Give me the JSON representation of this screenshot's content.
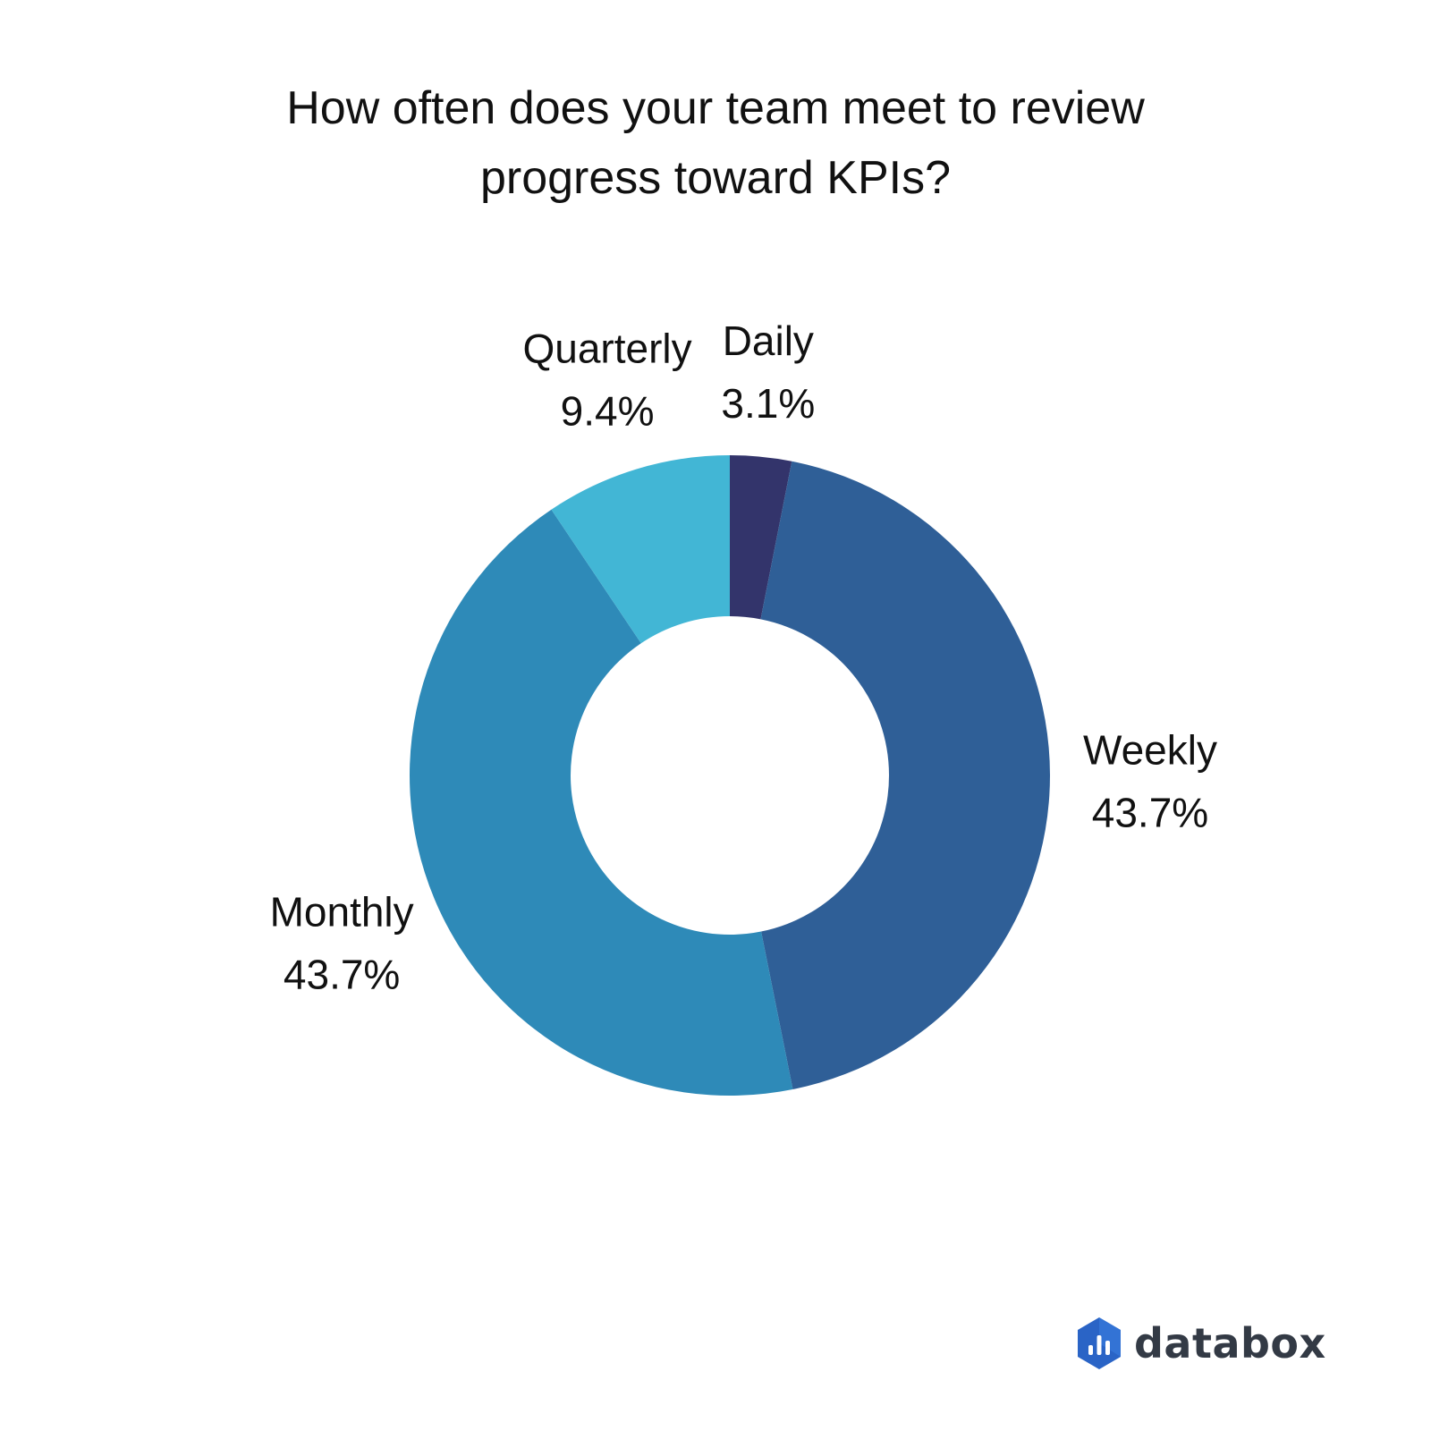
{
  "title_lines": [
    "How often does your team meet to review",
    "progress toward KPIs?"
  ],
  "chart_data": {
    "type": "pie",
    "donut": true,
    "title": "How often does your team meet to review progress toward KPIs?",
    "categories": [
      "Daily",
      "Weekly",
      "Monthly",
      "Quarterly"
    ],
    "values": [
      3.1,
      43.7,
      43.7,
      9.4
    ],
    "value_labels": [
      "3.1%",
      "43.7%",
      "43.7%",
      "9.4%"
    ],
    "colors": [
      "#33346b",
      "#2f5f97",
      "#2e8ab8",
      "#42b6d5"
    ],
    "start": "top",
    "direction": "clockwise",
    "legend": "none"
  },
  "brand": {
    "name": "databox",
    "text_color": "#333a45",
    "icon": "databox-logo-icon",
    "icon_color": "#2a64c6"
  }
}
